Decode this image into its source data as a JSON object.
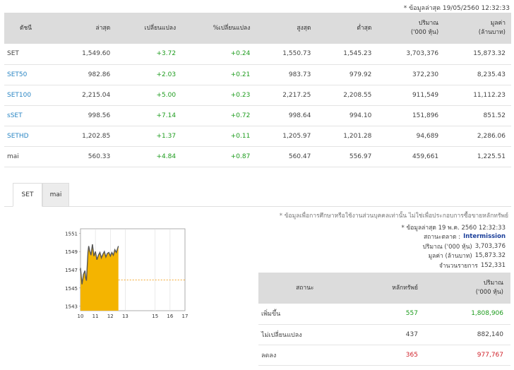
{
  "header_note": "* ข้อมูลล่าสุด 19/05/2560 12:32:33",
  "index_table": {
    "columns": [
      "ดัชนี",
      "ล่าสุด",
      "เปลี่ยนแปลง",
      "%เปลี่ยนแปลง",
      "สูงสุด",
      "ต่ำสุด",
      "ปริมาณ\n('000 หุ้น)",
      "มูลค่า\n(ล้านบาท)"
    ],
    "rows": [
      {
        "name": "SET",
        "link": false,
        "last": "1,549.60",
        "chg": "+3.72",
        "pct": "+0.24",
        "high": "1,550.73",
        "low": "1,545.23",
        "vol": "3,703,376",
        "val": "15,873.32"
      },
      {
        "name": "SET50",
        "link": true,
        "last": "982.86",
        "chg": "+2.03",
        "pct": "+0.21",
        "high": "983.73",
        "low": "979.92",
        "vol": "372,230",
        "val": "8,235.43"
      },
      {
        "name": "SET100",
        "link": true,
        "last": "2,215.04",
        "chg": "+5.00",
        "pct": "+0.23",
        "high": "2,217.25",
        "low": "2,208.55",
        "vol": "911,549",
        "val": "11,112.23"
      },
      {
        "name": "sSET",
        "link": true,
        "last": "998.56",
        "chg": "+7.14",
        "pct": "+0.72",
        "high": "998.64",
        "low": "994.10",
        "vol": "151,896",
        "val": "851.52"
      },
      {
        "name": "SETHD",
        "link": true,
        "last": "1,202.85",
        "chg": "+1.37",
        "pct": "+0.11",
        "high": "1,205.97",
        "low": "1,201.28",
        "vol": "94,689",
        "val": "2,286.06"
      },
      {
        "name": "mai",
        "link": false,
        "last": "560.33",
        "chg": "+4.84",
        "pct": "+0.87",
        "high": "560.47",
        "low": "556.97",
        "vol": "459,661",
        "val": "1,225.51"
      }
    ]
  },
  "tabs": [
    {
      "label": "SET",
      "active": true
    },
    {
      "label": "mai",
      "active": false
    }
  ],
  "chart_data": {
    "type": "area",
    "x_ticks": [
      "10",
      "11",
      "12",
      "13",
      "15",
      "16",
      "17"
    ],
    "y_ticks": [
      "1551",
      "1549",
      "1547",
      "1545",
      "1543"
    ],
    "ylim": [
      1542.5,
      1551.5
    ],
    "reference_line": 1545.88,
    "series": [
      {
        "x": [
          10.0,
          10.1,
          10.2,
          10.3,
          10.35,
          10.4,
          10.5,
          10.55,
          10.6,
          10.7,
          10.8,
          10.9,
          11.0,
          11.1,
          11.2,
          11.3,
          11.4,
          11.5,
          11.6,
          11.7,
          11.8,
          11.9,
          12.0,
          12.1,
          12.2,
          12.3,
          12.4,
          12.54
        ],
        "y": [
          1547.2,
          1545.4,
          1546.5,
          1546.9,
          1546.1,
          1545.8,
          1548.9,
          1549.6,
          1549.2,
          1548.6,
          1549.8,
          1548.5,
          1549.0,
          1548.1,
          1548.6,
          1548.9,
          1548.3,
          1548.7,
          1549.0,
          1548.4,
          1548.8,
          1548.9,
          1548.5,
          1548.9,
          1548.6,
          1549.2,
          1548.9,
          1549.6
        ],
        "fill_color": "#f4b400",
        "line_color": "#555555"
      }
    ]
  },
  "info": {
    "disclaimer": "* ข้อมูลเพื่อการศึกษาหรือใช้งานส่วนบุคคลเท่านั้น ไม่ใช่เพื่อประกอบการซื้อขายหลักทรัพย์",
    "updated": "* ข้อมูลล่าสุด 19 พ.ค. 2560 12:32:33",
    "market_status_label": "สถานะตลาด :",
    "market_status": "Intermission",
    "volume_label": "ปริมาณ ('000 หุ้น)",
    "volume": "3,703,376",
    "value_label": "มูลค่า (ล้านบาท)",
    "value": "15,873.32",
    "deals_label": "จำนวนรายการ",
    "deals": "152,331"
  },
  "stats_table": {
    "columns": [
      "สถานะ",
      "หลักทรัพย์",
      "ปริมาณ\n('000 หุ้น)"
    ],
    "rows": [
      {
        "label": "เพิ่มขึ้น",
        "count": "557",
        "volume": "1,808,906",
        "color": "up"
      },
      {
        "label": "ไม่เปลี่ยนแปลง",
        "count": "437",
        "volume": "882,140",
        "color": "plain"
      },
      {
        "label": "ลดลง",
        "count": "365",
        "volume": "977,767",
        "color": "down"
      }
    ]
  }
}
